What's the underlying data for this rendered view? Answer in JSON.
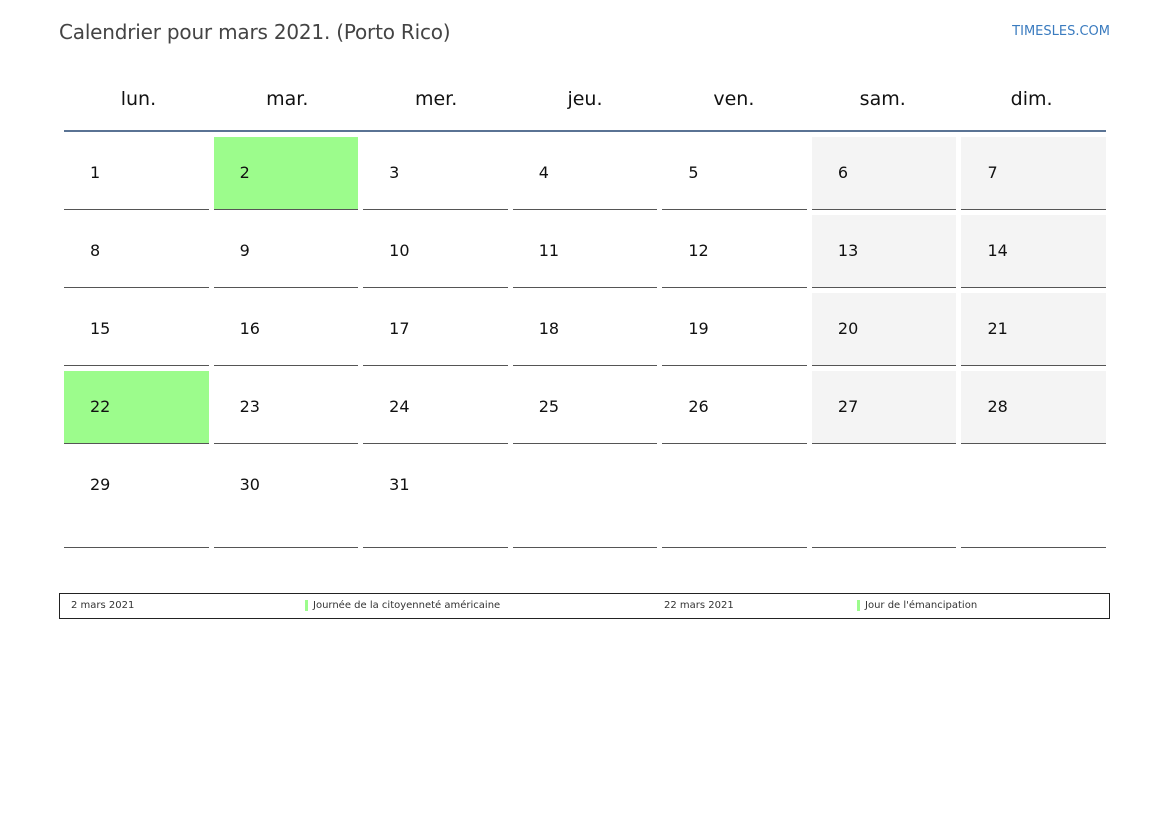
{
  "header": {
    "title": "Calendrier pour mars 2021. (Porto Rico)",
    "site": "TIMESLES.COM"
  },
  "calendar": {
    "weekdays": [
      "lun.",
      "mar.",
      "mer.",
      "jeu.",
      "ven.",
      "sam.",
      "dim."
    ],
    "weeks": [
      [
        "1",
        "2",
        "3",
        "4",
        "5",
        "6",
        "7"
      ],
      [
        "8",
        "9",
        "10",
        "11",
        "12",
        "13",
        "14"
      ],
      [
        "15",
        "16",
        "17",
        "18",
        "19",
        "20",
        "21"
      ],
      [
        "22",
        "23",
        "24",
        "25",
        "26",
        "27",
        "28"
      ],
      [
        "29",
        "30",
        "31",
        "",
        "",
        "",
        ""
      ]
    ],
    "holidays": [
      "2",
      "22"
    ]
  },
  "legend": [
    {
      "date": "2 mars 2021",
      "name": "Journée de la citoyenneté américaine"
    },
    {
      "date": "22 mars 2021",
      "name": "Jour de l'émancipation"
    }
  ],
  "colors": {
    "holiday": "#9cfc8c",
    "weekend": "#f4f4f4",
    "header_rule": "#5a7394",
    "link": "#3a7bbf"
  }
}
